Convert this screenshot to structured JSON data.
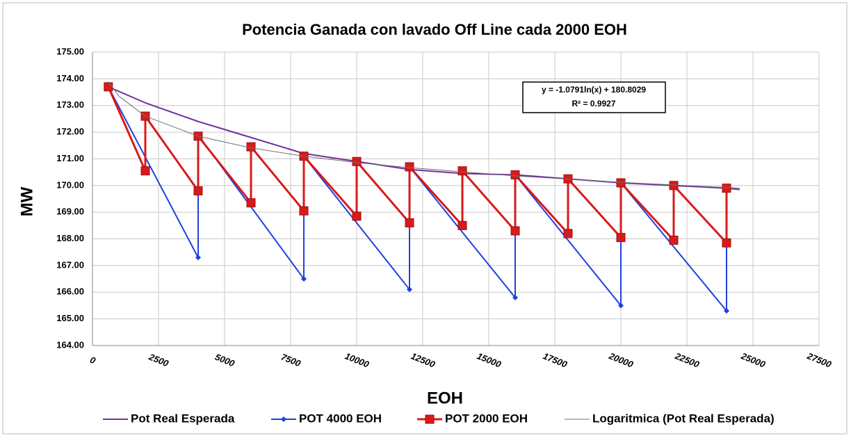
{
  "chart_data": {
    "type": "line",
    "title": "Potencia Ganada con lavado Off Line cada 2000 EOH",
    "x_label": "EOH",
    "y_label": "MW",
    "xlim": [
      0,
      27500
    ],
    "xticks": [
      0,
      2500,
      5000,
      7500,
      10000,
      12500,
      15000,
      17500,
      20000,
      22500,
      25000,
      27500
    ],
    "ylim": [
      164,
      175
    ],
    "yticks": [
      {
        "value": 164,
        "label": "164.00"
      },
      {
        "value": 165,
        "label": "165.00"
      },
      {
        "value": 166,
        "label": "166.00"
      },
      {
        "value": 167,
        "label": "167.00"
      },
      {
        "value": 168,
        "label": "168.00"
      },
      {
        "value": 169,
        "label": "169.00"
      },
      {
        "value": 170,
        "label": "170.00"
      },
      {
        "value": 171,
        "label": "171.00"
      },
      {
        "value": 172,
        "label": "172.00"
      },
      {
        "value": 173,
        "label": "173.00"
      },
      {
        "value": 174,
        "label": "174.00"
      },
      {
        "value": 175,
        "label": "175.00"
      }
    ],
    "grid": true,
    "legend": "bottom",
    "annotation": {
      "lines": [
        "y = -1.0791ln(x) + 180.8029",
        "R² = 0.9927"
      ]
    },
    "series": [
      {
        "name": "Pot Real Esperada",
        "color": "#7030a0",
        "marker": "none",
        "width": 2,
        "x": [
          600,
          2000,
          4000,
          6000,
          8000,
          10000,
          12000,
          14000,
          16000,
          18000,
          20000,
          22000,
          24000,
          24500
        ],
        "values": [
          173.7,
          173.1,
          172.4,
          171.8,
          171.2,
          170.9,
          170.6,
          170.45,
          170.4,
          170.25,
          170.1,
          170.0,
          169.9,
          169.85
        ]
      },
      {
        "name": "POT 4000 EOH",
        "color": "#1f3fe0",
        "marker": "diamond",
        "width": 2,
        "x": [
          600,
          4000,
          4000,
          8000,
          8000,
          12000,
          12000,
          16000,
          16000,
          20000,
          20000,
          24000,
          24000
        ],
        "values": [
          173.7,
          167.3,
          171.9,
          166.5,
          171.1,
          166.1,
          170.7,
          165.8,
          170.4,
          165.5,
          170.1,
          165.3,
          169.9
        ]
      },
      {
        "name": "POT 2000 EOH",
        "color": "#d91a1a",
        "marker": "square",
        "width": 3,
        "x": [
          600,
          2000,
          2000,
          4000,
          4000,
          6000,
          6000,
          8000,
          8000,
          10000,
          10000,
          12000,
          12000,
          14000,
          14000,
          16000,
          16000,
          18000,
          18000,
          20000,
          20000,
          22000,
          22000,
          24000,
          24000
        ],
        "values": [
          173.7,
          170.55,
          172.6,
          169.8,
          171.85,
          169.35,
          171.45,
          169.05,
          171.1,
          168.85,
          170.9,
          168.6,
          170.7,
          168.5,
          170.55,
          168.3,
          170.4,
          168.2,
          170.25,
          168.05,
          170.1,
          167.95,
          170.0,
          167.85,
          169.9
        ]
      },
      {
        "name": "Logaritmica (Pot Real Esperada)",
        "color": "#707070",
        "marker": "none",
        "width": 1,
        "x": [
          600,
          1000,
          2000,
          4000,
          6000,
          8000,
          10000,
          12000,
          16000,
          20000,
          24500
        ],
        "values": [
          173.9,
          173.35,
          172.6,
          171.85,
          171.41,
          171.1,
          170.86,
          170.67,
          170.36,
          170.12,
          169.9
        ]
      }
    ]
  }
}
